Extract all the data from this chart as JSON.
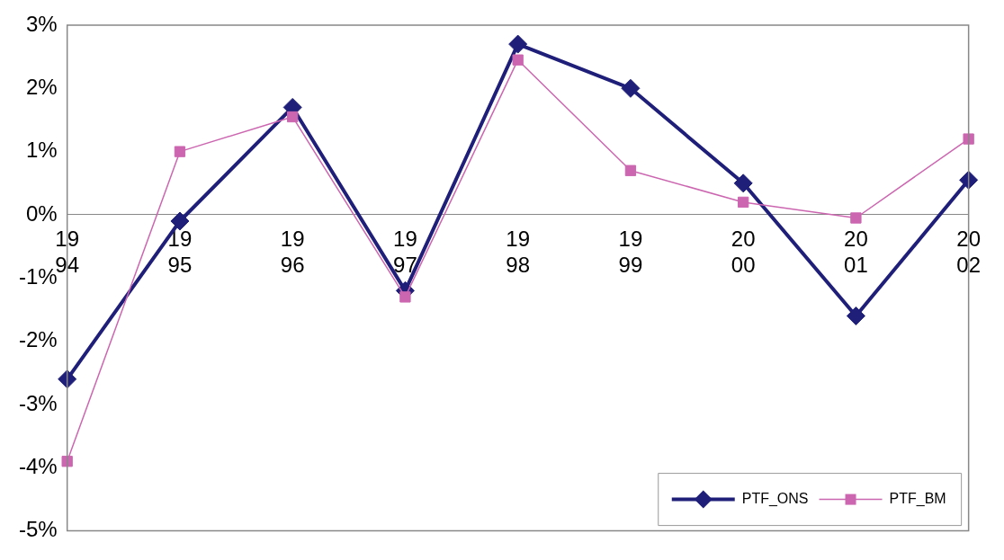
{
  "chart_data": {
    "type": "line",
    "categories": [
      "1994",
      "1995",
      "1996",
      "1997",
      "1998",
      "1999",
      "2000",
      "2001",
      "2002"
    ],
    "series": [
      {
        "name": "PTF_ONS",
        "color": "#1f1f7a",
        "marker": "diamond",
        "values": [
          -2.6,
          -0.1,
          1.7,
          -1.2,
          2.7,
          2.0,
          0.5,
          -1.6,
          0.55
        ]
      },
      {
        "name": "PTF_BM",
        "color": "#cc66b0",
        "marker": "square",
        "values": [
          -3.9,
          1.0,
          1.55,
          -1.3,
          2.45,
          0.7,
          0.2,
          -0.05,
          1.2
        ]
      }
    ],
    "ylim": [
      -5,
      3
    ],
    "yticks": [
      {
        "value": -5,
        "label": "-5%"
      },
      {
        "value": -4,
        "label": "-4%"
      },
      {
        "value": -3,
        "label": "-3%"
      },
      {
        "value": -2,
        "label": "-2%"
      },
      {
        "value": -1,
        "label": "-1%"
      },
      {
        "value": 0,
        "label": "0%"
      },
      {
        "value": 1,
        "label": "1%"
      },
      {
        "value": 2,
        "label": "2%"
      },
      {
        "value": 3,
        "label": "3%"
      }
    ],
    "grid": false,
    "legend": "bottom right",
    "line_style": "solid"
  }
}
